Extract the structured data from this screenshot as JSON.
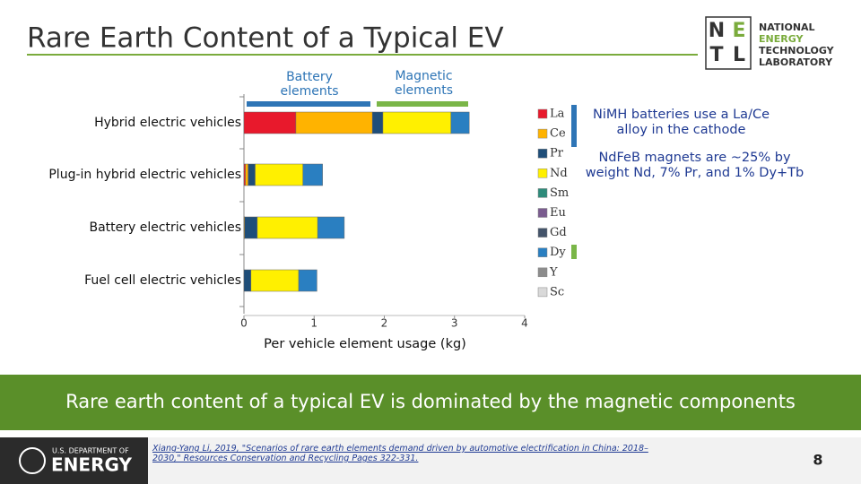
{
  "slide": {
    "title": "Rare Earth Content of a Typical EV",
    "netl_letters": [
      "N",
      "E",
      "T",
      "L"
    ],
    "netl_name": [
      "NATIONAL",
      "ENERGY",
      "TECHNOLOGY",
      "LABORATORY"
    ],
    "banner": "Rare earth content of a typical EV is dominated by the magnetic components",
    "doe_lines": [
      "U.S. DEPARTMENT OF",
      "ENERGY"
    ],
    "citation": "Xiang-Yang Li, 2019, \"Scenarios of rare earth elements demand driven by automotive electrification in China: 2018–2030,\" Resources Conservation and Recycling Pages 322-331.",
    "page_number": 8
  },
  "chart_data": {
    "type": "stacked-bar",
    "orientation": "horizontal",
    "x_label": "Per vehicle element usage (kg)",
    "categories": [
      "Hybrid electric vehicles",
      "Plug-in hybrid electric vehicles",
      "Battery electric vehicles",
      "Fuel cell electric vehicles"
    ],
    "series": [
      {
        "name": "La",
        "color": "#e8192c",
        "values": [
          0.74,
          0.02,
          0,
          0
        ]
      },
      {
        "name": "Ce",
        "color": "#ffb300",
        "values": [
          1.09,
          0.04,
          0.01,
          0
        ]
      },
      {
        "name": "Pr",
        "color": "#1f4e79",
        "values": [
          0.15,
          0.1,
          0.18,
          0.1
        ]
      },
      {
        "name": "Nd",
        "color": "#fff000",
        "values": [
          0.97,
          0.68,
          0.86,
          0.68
        ]
      },
      {
        "name": "Sm",
        "color": "#2e8b7a",
        "values": [
          0,
          0,
          0,
          0
        ]
      },
      {
        "name": "Eu",
        "color": "#7a5c8f",
        "values": [
          0,
          0,
          0,
          0
        ]
      },
      {
        "name": "Gd",
        "color": "#44546a",
        "values": [
          0,
          0,
          0,
          0
        ]
      },
      {
        "name": "Dy",
        "color": "#2a7fc1",
        "values": [
          0.26,
          0.28,
          0.38,
          0.26
        ]
      },
      {
        "name": "Y",
        "color": "#8c8c8c",
        "values": [
          0,
          0,
          0,
          0
        ]
      },
      {
        "name": "Sc",
        "color": "#d9d9d9",
        "values": [
          0,
          0,
          0,
          0
        ]
      }
    ],
    "xlim": [
      0,
      4
    ],
    "xticks": [
      0,
      1,
      2,
      3,
      4
    ],
    "annotations": [
      {
        "text": "Battery elements",
        "color": "#2e75b6"
      },
      {
        "text": "Magnetic elements",
        "color": "#7ab648"
      },
      {
        "text": "NiMH batteries use a La/Ce alloy in the cathode",
        "color": "#2e75b6"
      },
      {
        "text": "NdFeB magnets are ~25% by weight Nd, 7% Pr, and 1% Dy+Tb",
        "color": "#7ab648"
      }
    ]
  }
}
